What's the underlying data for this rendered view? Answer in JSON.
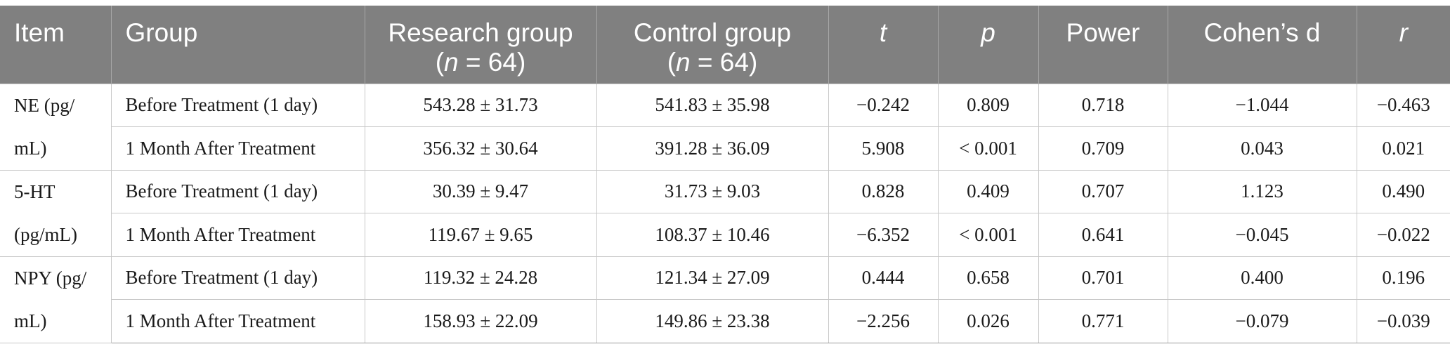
{
  "headers": {
    "item": "Item",
    "group": "Group",
    "research_line1": "Research group",
    "research_n_italic": "n",
    "research_n_rest": " = 64)",
    "control_line1": "Control group",
    "control_n_italic": "n",
    "control_n_rest": " = 64)",
    "paren_open": "(",
    "t": "t",
    "p": "p",
    "power": "Power",
    "cohens_d": "Cohen’s d",
    "r": "r"
  },
  "rows": [
    {
      "item": "NE (pg/ mL)",
      "group": "Before Treatment (1 day)",
      "research": "543.28 ± 31.73",
      "control": "541.83 ± 35.98",
      "t": "−0.242",
      "p": "0.809",
      "power": "0.718",
      "d": "−1.044",
      "r": "−0.463"
    },
    {
      "item": "",
      "group": "1 Month After Treatment",
      "research": "356.32 ± 30.64",
      "control": "391.28 ± 36.09",
      "t": "5.908",
      "p": "< 0.001",
      "power": "0.709",
      "d": "0.043",
      "r": "0.021"
    },
    {
      "item": "5-HT (pg/mL)",
      "group": "Before Treatment (1 day)",
      "research": "30.39 ± 9.47",
      "control": "31.73 ± 9.03",
      "t": "0.828",
      "p": "0.409",
      "power": "0.707",
      "d": "1.123",
      "r": "0.490"
    },
    {
      "item": "",
      "group": "1 Month After Treatment",
      "research": "119.67 ± 9.65",
      "control": "108.37 ± 10.46",
      "t": "−6.352",
      "p": "< 0.001",
      "power": "0.641",
      "d": "−0.045",
      "r": "−0.022"
    },
    {
      "item": "NPY (pg/ mL)",
      "group": "Before Treatment (1 day)",
      "research": "119.32 ± 24.28",
      "control": "121.34 ± 27.09",
      "t": "0.444",
      "p": "0.658",
      "power": "0.701",
      "d": "0.400",
      "r": "0.196"
    },
    {
      "item": "",
      "group": "1 Month After Treatment",
      "research": "158.93 ± 22.09",
      "control": "149.86 ± 23.38",
      "t": "−2.256",
      "p": "0.026",
      "power": "0.771",
      "d": "−0.079",
      "r": "−0.039"
    }
  ]
}
